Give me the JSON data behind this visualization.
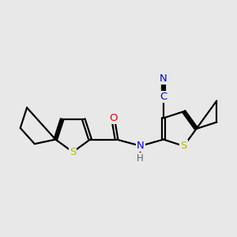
{
  "background_color": "#e8e8e8",
  "atom_colors": {
    "C": "#000000",
    "S": "#b8b800",
    "N": "#0000ee",
    "O": "#ee0000",
    "H": "#606060"
  },
  "bond_color": "#000000",
  "bond_width": 1.6,
  "font_size": 9.5
}
